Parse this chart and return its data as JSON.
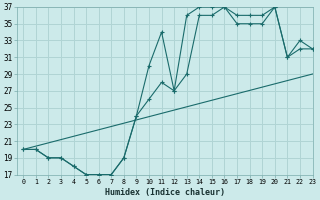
{
  "title": "",
  "xlabel": "Humidex (Indice chaleur)",
  "ylabel": "",
  "bg_color": "#cceaea",
  "grid_color": "#b0d4d4",
  "line_color": "#1a6b6b",
  "x_min": -0.5,
  "x_max": 23,
  "y_min": 17,
  "y_max": 37,
  "y_ticks": [
    17,
    19,
    21,
    23,
    25,
    27,
    29,
    31,
    33,
    35,
    37
  ],
  "x_ticks": [
    0,
    1,
    2,
    3,
    4,
    5,
    6,
    7,
    8,
    9,
    10,
    11,
    12,
    13,
    14,
    15,
    16,
    17,
    18,
    19,
    20,
    21,
    22,
    23
  ],
  "curve1_x": [
    0,
    1,
    2,
    3,
    4,
    5,
    6,
    7,
    8,
    9,
    10,
    11,
    12,
    13,
    14,
    15,
    16,
    17,
    18,
    19,
    20,
    21,
    22,
    23
  ],
  "curve1_y": [
    20,
    20,
    19,
    19,
    18,
    17,
    17,
    17,
    19,
    24,
    30,
    34,
    27,
    36,
    37,
    37,
    37,
    36,
    36,
    36,
    37,
    31,
    33,
    32
  ],
  "curve2_x": [
    0,
    1,
    2,
    3,
    4,
    5,
    6,
    7,
    8,
    9,
    10,
    11,
    12,
    13,
    14,
    15,
    16,
    17,
    18,
    19,
    20,
    21,
    22,
    23
  ],
  "curve2_y": [
    20,
    20,
    19,
    19,
    18,
    17,
    17,
    17,
    19,
    24,
    26,
    28,
    27,
    29,
    36,
    36,
    37,
    35,
    35,
    35,
    37,
    31,
    32,
    32
  ],
  "line_x": [
    0,
    23
  ],
  "line_y": [
    20,
    29
  ],
  "figsize": [
    3.2,
    2.0
  ],
  "dpi": 100
}
